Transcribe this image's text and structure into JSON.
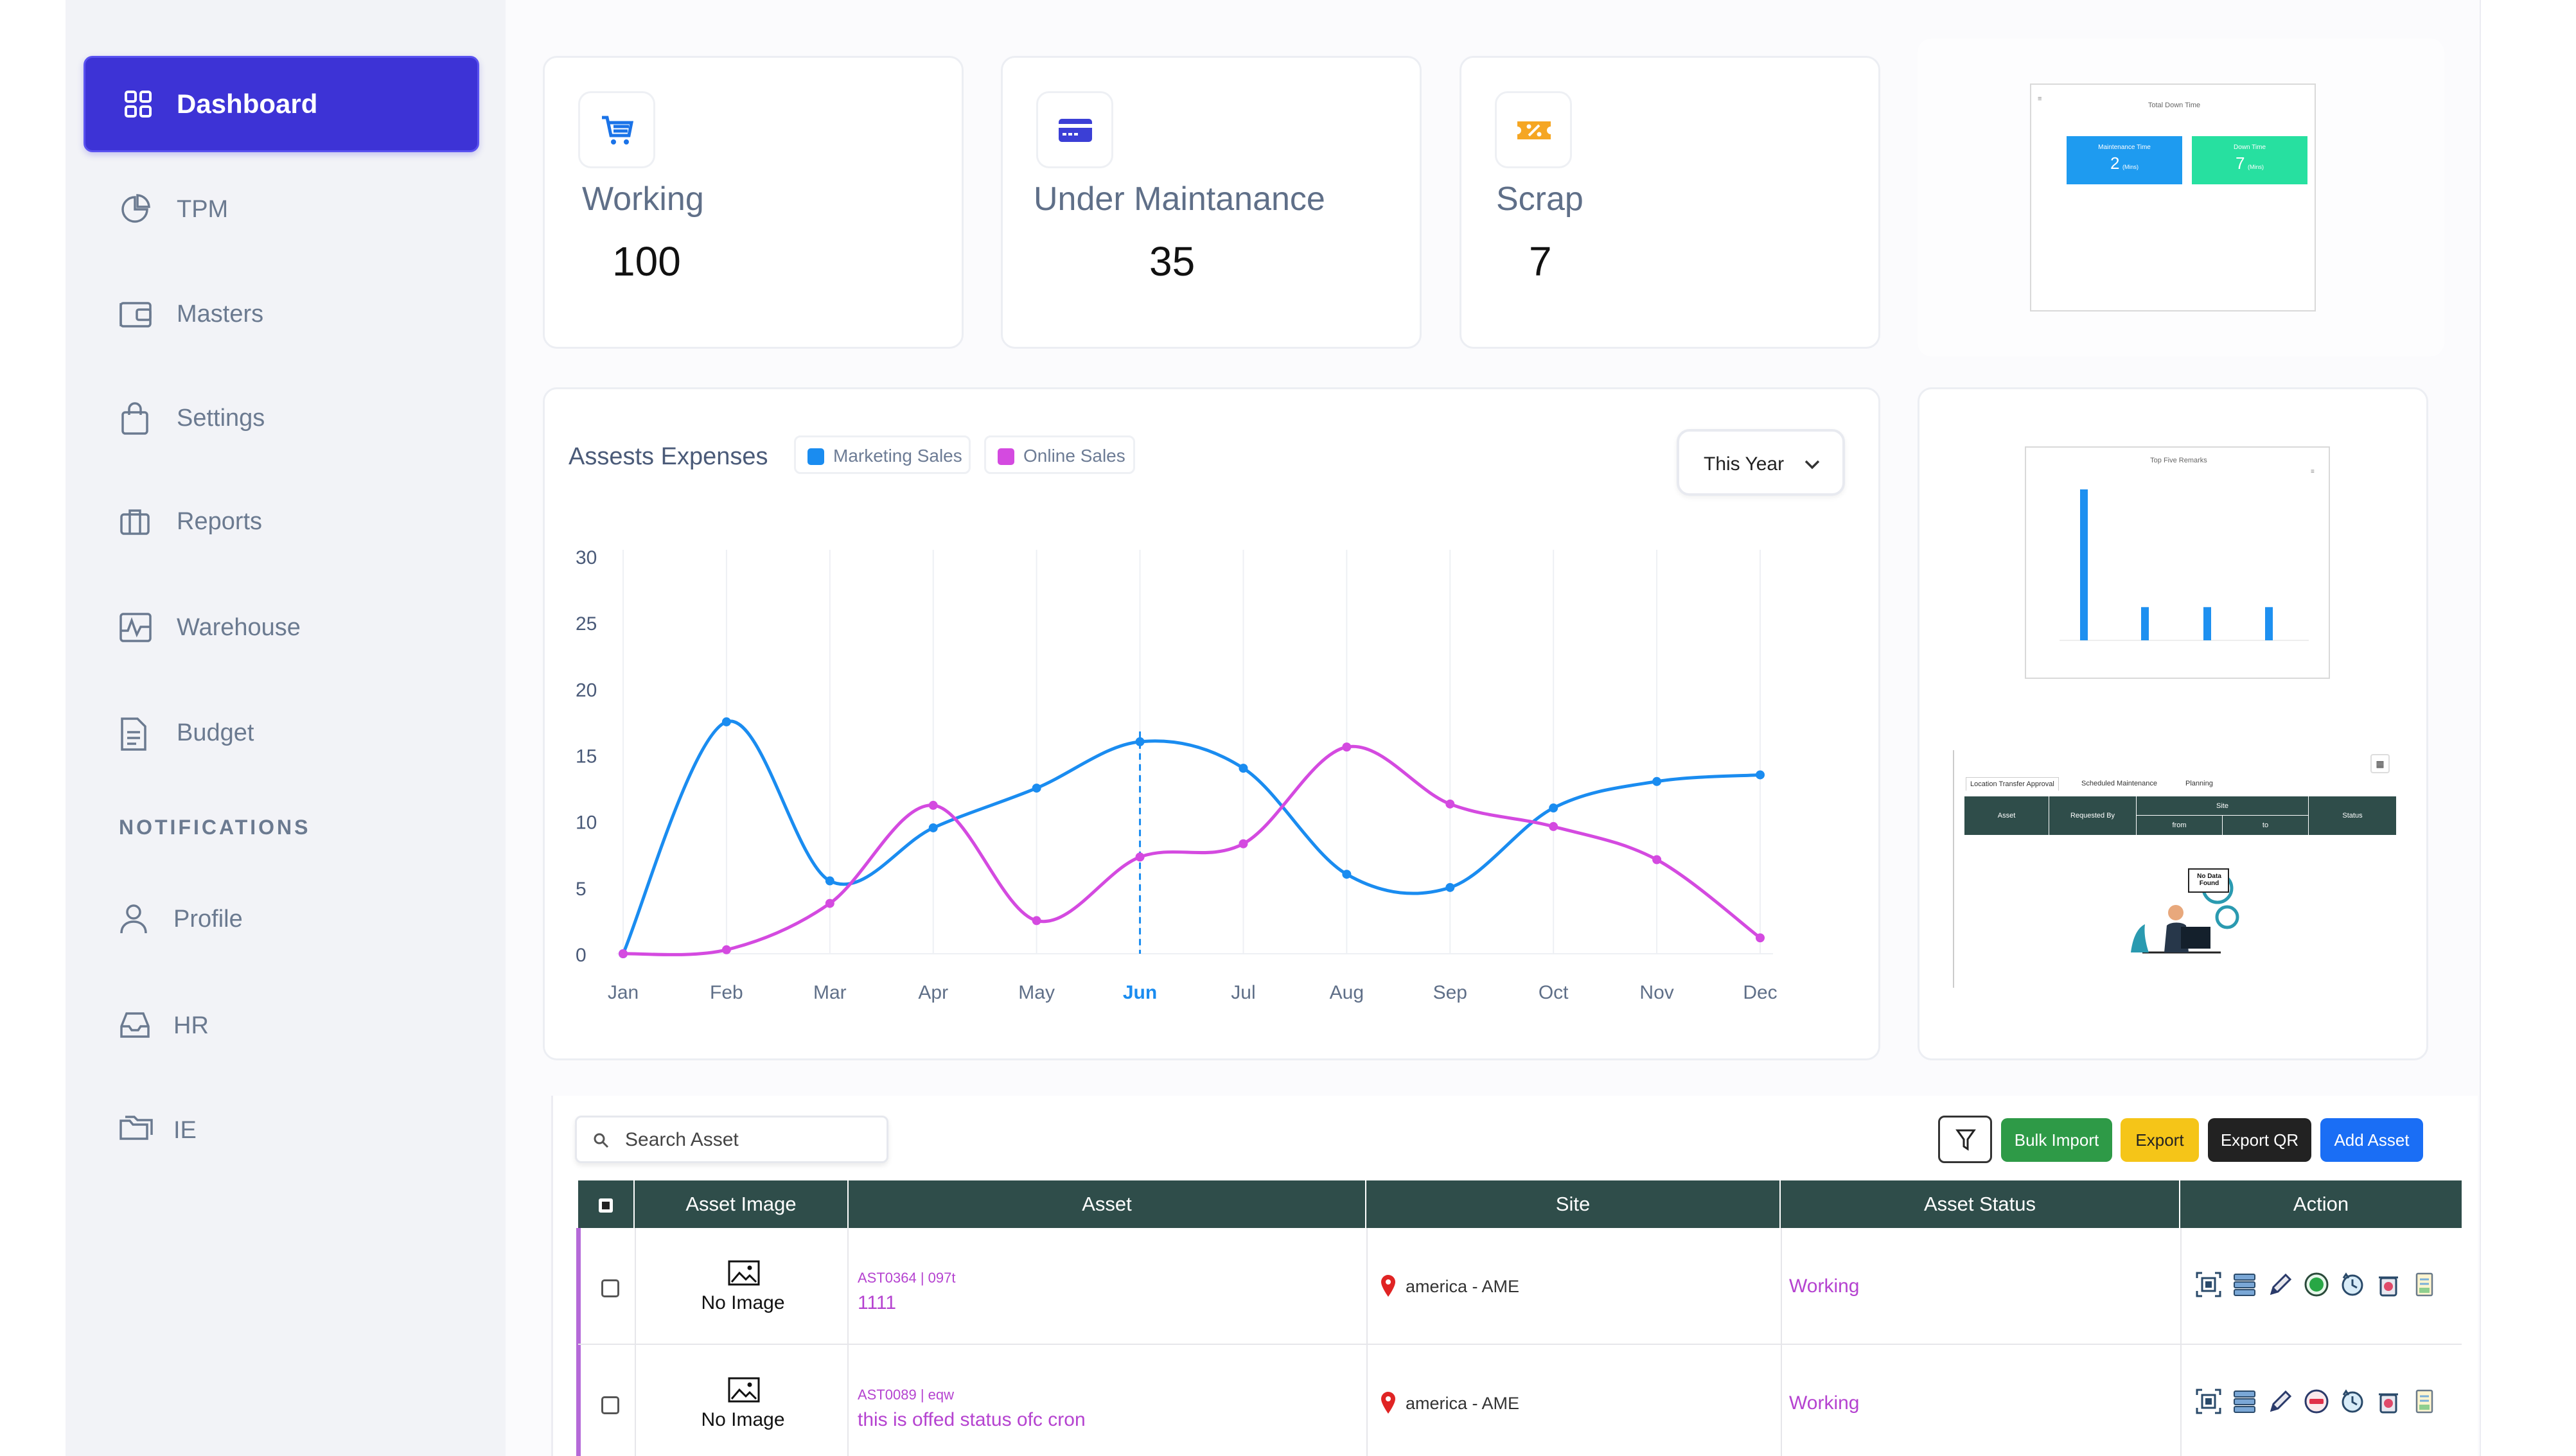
{
  "sidebar": {
    "active": "Dashboard",
    "items": [
      {
        "label": "TPM"
      },
      {
        "label": "Masters"
      },
      {
        "label": "Settings"
      },
      {
        "label": "Reports"
      },
      {
        "label": "Warehouse"
      },
      {
        "label": "Budget"
      }
    ],
    "notifications_heading": "NOTIFICATIONS",
    "notif_items": [
      {
        "label": "Profile"
      },
      {
        "label": "HR"
      },
      {
        "label": "IE"
      }
    ]
  },
  "stats": [
    {
      "title": "Working",
      "value": "100",
      "icon": "cart-icon",
      "color": "#1a73e8"
    },
    {
      "title": "Under Maintanance",
      "value": "35",
      "icon": "credit-card-icon",
      "color": "#3b3fd6"
    },
    {
      "title": "Scrap",
      "value": "7",
      "icon": "discount-tag-icon",
      "color": "#f5a623"
    }
  ],
  "downtime": {
    "title": "Total Down Time",
    "maintenance_label": "Maintenance Time",
    "maintenance_value": "2",
    "maintenance_unit": "(Mins)",
    "down_label": "Down Time",
    "down_value": "7",
    "down_unit": "(Mins)",
    "maintenance_color": "#1e9bf0",
    "down_color": "#27e0a0"
  },
  "chart": {
    "title": "Assests Expenses",
    "legend": [
      {
        "name": "Marketing Sales",
        "color": "#1a8cf0"
      },
      {
        "name": "Online Sales",
        "color": "#d44ae0"
      }
    ],
    "period": "This Year",
    "highlight_month": "Jun"
  },
  "chart_data": [
    {
      "type": "line",
      "title": "Assests Expenses",
      "categories": [
        "Jan",
        "Feb",
        "Mar",
        "Apr",
        "May",
        "Jun",
        "Jul",
        "Aug",
        "Sep",
        "Oct",
        "Nov",
        "Dec"
      ],
      "series": [
        {
          "name": "Marketing Sales",
          "values": [
            0,
            17.5,
            5.5,
            9.5,
            12.5,
            16,
            14,
            6,
            5,
            11,
            13,
            13.5
          ]
        },
        {
          "name": "Online Sales",
          "values": [
            0,
            0.3,
            3.8,
            11.2,
            2.5,
            7.3,
            8.3,
            15.6,
            11.3,
            9.6,
            7.1,
            1.2
          ]
        }
      ],
      "yticks": [
        0,
        5,
        10,
        15,
        20,
        25,
        30
      ],
      "ylim": [
        0,
        30
      ],
      "grid": "vertical",
      "legend_position": "top-left"
    },
    {
      "type": "bar",
      "title": "Top Five Remarks",
      "values": [
        5,
        1.1,
        1.1,
        1.1
      ]
    }
  ],
  "remarks": {
    "title": "Top Five Remarks"
  },
  "transfer": {
    "tabs": [
      "Location Transfer Approval",
      "Scheduled Maintenance",
      "Planning"
    ],
    "headers": [
      "Asset",
      "Requested By",
      "Site",
      "Status"
    ],
    "sub_headers": [
      "from",
      "to"
    ],
    "no_data": "No Data Found"
  },
  "table": {
    "search_placeholder": "Search Asset",
    "buttons": {
      "bulk_import": "Bulk Import",
      "export": "Export",
      "export_qr": "Export QR",
      "add_asset": "Add Asset"
    },
    "button_colors": {
      "bulk_import": "#2e9a47",
      "export": "#f5c518",
      "export_qr": "#222222",
      "add_asset": "#1a6ef5"
    },
    "columns": [
      "Asset Image",
      "Asset",
      "Site",
      "Asset Status",
      "Action"
    ],
    "rows": [
      {
        "image_text": "No Image",
        "code": "AST0364 | 097t",
        "name": "1111",
        "site": "america - AME",
        "status": "Working"
      },
      {
        "image_text": "No Image",
        "code": "AST0089 | eqw",
        "name": "this is offed status ofc cron",
        "site": "america - AME",
        "status": "Working"
      }
    ]
  }
}
